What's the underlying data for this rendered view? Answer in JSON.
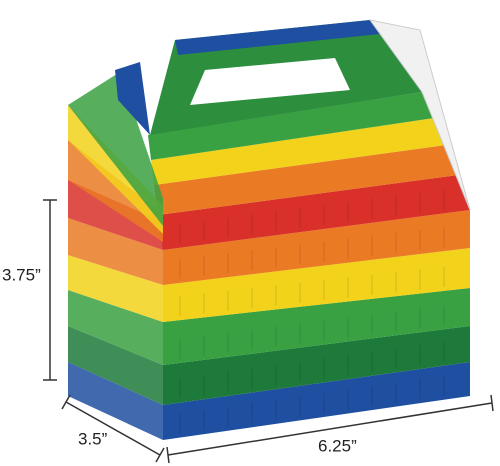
{
  "dimensions": {
    "height": "3.75”",
    "depth": "3.5”",
    "width": "6.25”"
  }
}
